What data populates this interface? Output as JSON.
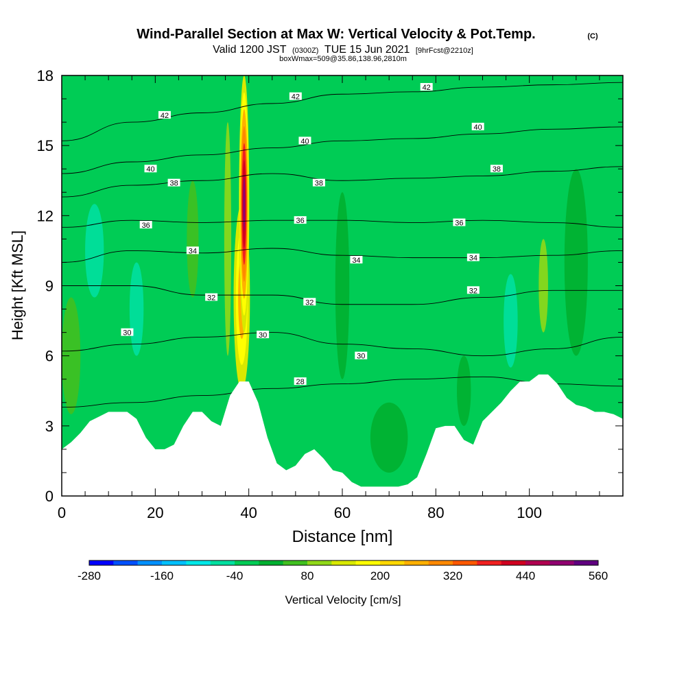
{
  "title": {
    "main": "Wind-Parallel Section at Max W: Vertical Velocity & Pot.Temp.",
    "copyright": "(C)",
    "line2_a": "Valid 1200 JST",
    "line2_b": "(0300Z)",
    "line2_c": "TUE 15 Jun 2021",
    "line2_d": "[9hrFcst@2210z]",
    "line3": "boxWmax=509@35.86,138.96,2810m"
  },
  "chart_data": {
    "type": "heatmap",
    "xlabel": "Distance [nm]",
    "ylabel": "Height [Kft MSL]",
    "xlim": [
      0,
      120
    ],
    "ylim": [
      0,
      18
    ],
    "x_ticks": [
      0,
      20,
      40,
      60,
      80,
      100
    ],
    "y_ticks": [
      0,
      3,
      6,
      9,
      12,
      15,
      18
    ],
    "grid": false,
    "terrain": {
      "x": [
        0,
        2,
        4,
        6,
        8,
        10,
        14,
        16,
        18,
        20,
        22,
        24,
        26,
        28,
        30,
        32,
        34,
        36,
        38,
        40,
        42,
        44,
        46,
        48,
        50,
        52,
        54,
        56,
        58,
        60,
        62,
        64,
        66,
        68,
        70,
        72,
        74,
        76,
        78,
        80,
        82,
        84,
        86,
        88,
        90,
        92,
        94,
        96,
        98,
        100,
        102,
        104,
        106,
        108,
        110,
        112,
        114,
        116,
        118,
        120
      ],
      "y": [
        2.0,
        2.3,
        2.7,
        3.2,
        3.4,
        3.6,
        3.6,
        3.3,
        2.5,
        2.0,
        2.0,
        2.2,
        3.0,
        3.6,
        3.6,
        3.2,
        3.0,
        4.3,
        4.9,
        4.9,
        4.0,
        2.5,
        1.4,
        1.1,
        1.3,
        1.8,
        2.0,
        1.6,
        1.1,
        1.0,
        0.6,
        0.4,
        0.4,
        0.4,
        0.4,
        0.4,
        0.5,
        0.8,
        1.8,
        2.9,
        3.0,
        3.0,
        2.4,
        2.2,
        3.2,
        3.6,
        4.0,
        4.5,
        4.9,
        4.9,
        5.2,
        5.2,
        4.8,
        4.2,
        3.9,
        3.8,
        3.6,
        3.6,
        3.5,
        3.3
      ]
    },
    "background_w_cm_s": -10,
    "w_features": [
      {
        "x": 39,
        "y": 12.5,
        "width_nm": 2.2,
        "height_kft": 11,
        "value": 509
      },
      {
        "x": 38.5,
        "y": 8.5,
        "width_nm": 3.5,
        "height_kft": 8,
        "value": 280
      },
      {
        "x": 35.5,
        "y": 11,
        "width_nm": 1.5,
        "height_kft": 10,
        "value": 80
      },
      {
        "x": 2,
        "y": 6,
        "width_nm": 4,
        "height_kft": 5,
        "value": 60
      },
      {
        "x": 7,
        "y": 10.5,
        "width_nm": 4,
        "height_kft": 4,
        "value": -80
      },
      {
        "x": 16,
        "y": 8,
        "width_nm": 3,
        "height_kft": 4,
        "value": -60
      },
      {
        "x": 28,
        "y": 11,
        "width_nm": 2.5,
        "height_kft": 5,
        "value": 40
      },
      {
        "x": 60,
        "y": 9,
        "width_nm": 3,
        "height_kft": 8,
        "value": 20
      },
      {
        "x": 70,
        "y": 2.5,
        "width_nm": 8,
        "height_kft": 3,
        "value": 20
      },
      {
        "x": 86,
        "y": 4.5,
        "width_nm": 3,
        "height_kft": 3,
        "value": 30
      },
      {
        "x": 96,
        "y": 7.5,
        "width_nm": 3,
        "height_kft": 4,
        "value": -70
      },
      {
        "x": 103,
        "y": 9,
        "width_nm": 2,
        "height_kft": 4,
        "value": 100
      },
      {
        "x": 110,
        "y": 10,
        "width_nm": 5,
        "height_kft": 8,
        "value": 10
      }
    ],
    "theta_contours": [
      {
        "label": "28",
        "y": [
          3.8,
          4.0,
          4.3,
          4.6,
          4.8,
          5.0,
          5.1,
          4.8,
          4.7
        ],
        "label_pos": [
          51,
          4.9
        ]
      },
      {
        "label": "30",
        "y": [
          6.2,
          6.5,
          6.8,
          7.0,
          6.5,
          6.3,
          6.0,
          6.3,
          6.8
        ],
        "label_pos": [
          64,
          6.0
        ]
      },
      {
        "label": "32",
        "y": [
          9.0,
          9.0,
          8.6,
          8.6,
          8.2,
          8.2,
          8.5,
          8.8,
          8.8
        ],
        "label_pos": [
          53,
          8.3
        ]
      },
      {
        "label": "34",
        "y": [
          10.0,
          10.5,
          10.4,
          10.6,
          10.3,
          10.2,
          10.2,
          10.3,
          10.5
        ],
        "label_pos": [
          63,
          10.1
        ]
      },
      {
        "label": "36",
        "y": [
          11.5,
          11.8,
          11.7,
          11.8,
          11.8,
          11.7,
          11.8,
          11.7,
          11.5
        ],
        "label_pos": [
          51,
          11.8
        ]
      },
      {
        "label": "38",
        "y": [
          12.8,
          13.3,
          13.5,
          13.8,
          13.5,
          13.6,
          13.7,
          13.9,
          14.1
        ],
        "label_pos": [
          55,
          13.4
        ]
      },
      {
        "label": "40",
        "y": [
          13.8,
          14.3,
          14.6,
          14.9,
          15.2,
          15.3,
          15.5,
          15.7,
          15.8
        ],
        "label_pos": [
          52,
          15.2
        ]
      },
      {
        "label": "42",
        "y": [
          15.2,
          16.0,
          16.4,
          16.8,
          17.2,
          17.3,
          17.5,
          17.6,
          17.7
        ],
        "label_pos": [
          50,
          17.1
        ]
      }
    ],
    "theta_contour_x": [
      0,
      15,
      30,
      45,
      60,
      75,
      90,
      105,
      120
    ],
    "extra_contour_labels": [
      {
        "label": "42",
        "x": 22,
        "y": 16.3
      },
      {
        "label": "42",
        "x": 78,
        "y": 17.5
      },
      {
        "label": "40",
        "x": 19,
        "y": 14.0
      },
      {
        "label": "40",
        "x": 89,
        "y": 15.8
      },
      {
        "label": "38",
        "x": 24,
        "y": 13.4
      },
      {
        "label": "38",
        "x": 93,
        "y": 14.0
      },
      {
        "label": "36",
        "x": 18,
        "y": 11.6
      },
      {
        "label": "36",
        "x": 85,
        "y": 11.7
      },
      {
        "label": "34",
        "x": 28,
        "y": 10.5
      },
      {
        "label": "34",
        "x": 88,
        "y": 10.2
      },
      {
        "label": "32",
        "x": 32,
        "y": 8.5
      },
      {
        "label": "32",
        "x": 88,
        "y": 8.8
      },
      {
        "label": "30",
        "x": 14,
        "y": 7.0
      },
      {
        "label": "30",
        "x": 43,
        "y": 6.9
      }
    ],
    "colorbar": {
      "label": "Vertical Velocity [cm/s]",
      "tick_labels": [
        "-280",
        "-160",
        "-40",
        "80",
        "200",
        "320",
        "440",
        "560"
      ],
      "tick_values": [
        -280,
        -160,
        -40,
        80,
        200,
        320,
        440,
        560
      ],
      "min": -280,
      "step": 40,
      "colors": [
        "#0000ff",
        "#0050ff",
        "#0090ff",
        "#00c0ff",
        "#00e8e8",
        "#00e0a0",
        "#00cc55",
        "#00b030",
        "#40c020",
        "#90d818",
        "#d8e800",
        "#ffff00",
        "#ffd800",
        "#ffb000",
        "#ff8800",
        "#ff5800",
        "#f02020",
        "#d00020",
        "#b00050",
        "#900070",
        "#600080"
      ]
    }
  }
}
